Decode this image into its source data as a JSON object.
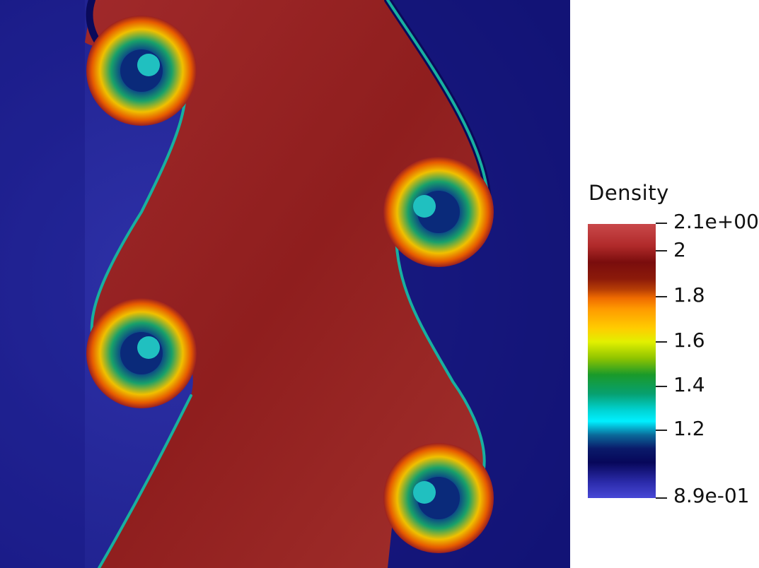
{
  "colorbar": {
    "title": "Density",
    "ticks": [
      {
        "label": "2.1e+00",
        "value": 2.1
      },
      {
        "label": "2",
        "value": 2.0
      },
      {
        "label": "1.8",
        "value": 1.8
      },
      {
        "label": "1.6",
        "value": 1.6
      },
      {
        "label": "1.4",
        "value": 1.4
      },
      {
        "label": "1.2",
        "value": 1.2
      },
      {
        "label": "8.9e-01",
        "value": 0.89
      }
    ],
    "range": [
      0.89,
      2.1
    ]
  },
  "colors": {
    "background_low": "#2b2b9e",
    "background_dark": "#07075a",
    "high_density": "#9a2626",
    "interface_cyan": "#00c8c8"
  }
}
